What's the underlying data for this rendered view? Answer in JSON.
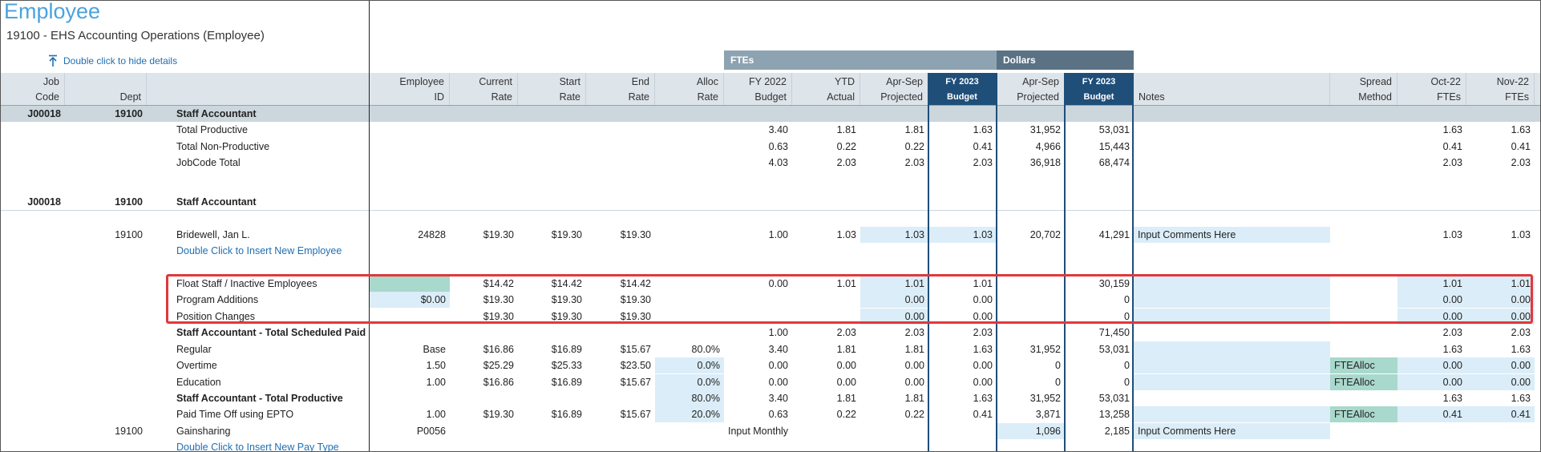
{
  "page": {
    "title": "Employee",
    "subtitle": "19100 - EHS Accounting Operations (Employee)",
    "hide_details": "Double click to hide details"
  },
  "bands": {
    "ftes": "FTEs",
    "dollars": "Dollars"
  },
  "headers": {
    "job_code": [
      "Job",
      "Code"
    ],
    "dept": "Dept",
    "employee_id": [
      "Employee",
      "ID"
    ],
    "current_rate": [
      "Current",
      "Rate"
    ],
    "start_rate": [
      "Start",
      "Rate"
    ],
    "end_rate": [
      "End",
      "Rate"
    ],
    "alloc_rate": [
      "Alloc",
      "Rate"
    ],
    "fy2022_budget": [
      "FY 2022",
      "Budget"
    ],
    "ytd_actual": [
      "YTD",
      "Actual"
    ],
    "aprsep_projected": [
      "Apr-Sep",
      "Projected"
    ],
    "fy2023_budget": [
      "FY 2023",
      "Budget"
    ],
    "dollars_aprsep": [
      "Apr-Sep",
      "Projected"
    ],
    "dollars_fy2023": [
      "FY 2023",
      "Budget"
    ],
    "notes": "Notes",
    "spread_method": [
      "Spread",
      "Method"
    ],
    "oct22": [
      "Oct-22",
      "FTEs"
    ],
    "nov22": [
      "Nov-22",
      "FTEs"
    ]
  },
  "rows": [
    {
      "type": "group",
      "job": "J00018",
      "dept": "19100",
      "name": "Staff Accountant"
    },
    {
      "type": "data",
      "name": "Total Productive",
      "fy22": "3.40",
      "ytd": "1.81",
      "proj": "1.81",
      "fy23": "1.63",
      "d_proj": "31,952",
      "d_fy23": "53,031",
      "oct": "1.63",
      "nov": "1.63"
    },
    {
      "type": "data",
      "name": "Total Non-Productive",
      "fy22": "0.63",
      "ytd": "0.22",
      "proj": "0.22",
      "fy23": "0.41",
      "d_proj": "4,966",
      "d_fy23": "15,443",
      "oct": "0.41",
      "nov": "0.41"
    },
    {
      "type": "data",
      "name": "JobCode Total",
      "fy22": "4.03",
      "ytd": "2.03",
      "proj": "2.03",
      "fy23": "2.03",
      "d_proj": "36,918",
      "d_fy23": "68,474",
      "oct": "2.03",
      "nov": "2.03"
    },
    {
      "type": "group2",
      "job": "J00018",
      "dept": "19100",
      "name": "Staff Accountant"
    },
    {
      "type": "emp",
      "dept": "19100",
      "name": "Bridewell, Jan L.",
      "emp_id": "24828",
      "cur": "$19.30",
      "start": "$19.30",
      "end": "$19.30",
      "fy22": "1.00",
      "ytd": "1.03",
      "proj": "1.03",
      "fy23": "1.03",
      "d_proj": "20,702",
      "d_fy23": "41,291",
      "notes": "Input Comments Here",
      "oct": "1.03",
      "nov": "1.03"
    },
    {
      "type": "link",
      "name": "Double Click to Insert New Employee"
    },
    {
      "type": "float",
      "name": "Float Staff / Inactive Employees",
      "cur": "$14.42",
      "start": "$14.42",
      "end": "$14.42",
      "fy22": "0.00",
      "ytd": "1.01",
      "proj": "1.01",
      "fy23": "1.01",
      "d_fy23": "30,159",
      "oct": "1.01",
      "nov": "1.01"
    },
    {
      "type": "prog",
      "name": "Program Additions",
      "emp_id": "$0.00",
      "cur": "$19.30",
      "start": "$19.30",
      "end": "$19.30",
      "proj": "0.00",
      "fy23": "0.00",
      "d_fy23": "0",
      "oct": "0.00",
      "nov": "0.00"
    },
    {
      "type": "pos",
      "name": "Position Changes",
      "cur": "$19.30",
      "start": "$19.30",
      "end": "$19.30",
      "proj": "0.00",
      "fy23": "0.00",
      "d_fy23": "0",
      "oct": "0.00",
      "nov": "0.00"
    },
    {
      "type": "total",
      "name": "Staff Accountant - Total Scheduled Paid",
      "fy22": "1.00",
      "ytd": "2.03",
      "proj": "2.03",
      "fy23": "2.03",
      "d_fy23": "71,450",
      "oct": "2.03",
      "nov": "2.03"
    },
    {
      "type": "pay",
      "name": "Regular",
      "emp_id": "Base",
      "cur": "$16.86",
      "start": "$16.89",
      "end": "$15.67",
      "alloc": "80.0%",
      "fy22": "3.40",
      "ytd": "1.81",
      "proj": "1.81",
      "fy23": "1.63",
      "d_proj": "31,952",
      "d_fy23": "53,031",
      "oct": "1.63",
      "nov": "1.63"
    },
    {
      "type": "pay2",
      "name": "Overtime",
      "emp_id": "1.50",
      "cur": "$25.29",
      "start": "$25.33",
      "end": "$23.50",
      "alloc": "0.0%",
      "fy22": "0.00",
      "ytd": "0.00",
      "proj": "0.00",
      "fy23": "0.00",
      "d_proj": "0",
      "d_fy23": "0",
      "spread": "FTEAlloc",
      "oct": "0.00",
      "nov": "0.00"
    },
    {
      "type": "pay2",
      "name": "Education",
      "emp_id": "1.00",
      "cur": "$16.86",
      "start": "$16.89",
      "end": "$15.67",
      "alloc": "0.0%",
      "fy22": "0.00",
      "ytd": "0.00",
      "proj": "0.00",
      "fy23": "0.00",
      "d_proj": "0",
      "d_fy23": "0",
      "spread": "FTEAlloc",
      "oct": "0.00",
      "nov": "0.00"
    },
    {
      "type": "total2",
      "name": "Staff Accountant - Total Productive",
      "alloc": "80.0%",
      "fy22": "3.40",
      "ytd": "1.81",
      "proj": "1.81",
      "fy23": "1.63",
      "d_proj": "31,952",
      "d_fy23": "53,031",
      "oct": "1.63",
      "nov": "1.63"
    },
    {
      "type": "pay2",
      "name": "Paid Time Off using EPTO",
      "emp_id": "1.00",
      "cur": "$19.30",
      "start": "$16.89",
      "end": "$15.67",
      "alloc": "20.0%",
      "fy22": "0.63",
      "ytd": "0.22",
      "proj": "0.22",
      "fy23": "0.41",
      "d_proj": "3,871",
      "d_fy23": "13,258",
      "spread": "FTEAlloc",
      "oct": "0.41",
      "nov": "0.41"
    },
    {
      "type": "gain",
      "dept": "19100",
      "name": "Gainsharing",
      "emp_id": "P0056",
      "monthly": "Input Monthly",
      "d_proj": "1,096",
      "d_fy23": "2,185",
      "notes": "Input Comments Here"
    },
    {
      "type": "link2",
      "name": "Double Click to Insert New Pay Type"
    }
  ]
}
